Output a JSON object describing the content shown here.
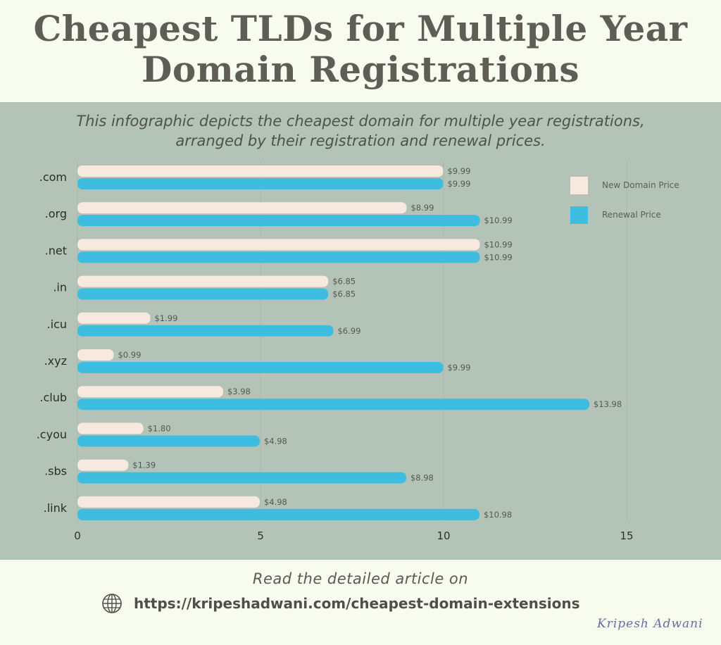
{
  "header": {
    "title_line1": "Cheapest TLDs for Multiple Year",
    "title_line2": "Domain Registrations",
    "subtitle_line1": "This infographic depicts the cheapest domain for multiple year registrations,",
    "subtitle_line2": "arranged by their registration and renewal prices."
  },
  "footer": {
    "read_more": "Read the detailed article on",
    "url": "https://kripeshadwani.com/cheapest-domain-extensions",
    "url_icon": "globe-icon",
    "signature": "Kripesh Adwani"
  },
  "colors": {
    "new_price": "#f7e9df",
    "renewal_price": "#3fbde0",
    "panel_bg": "#b3c3b7",
    "page_bg": "#f8fcef",
    "title_text": "#5f5e56"
  },
  "chart_data": {
    "type": "bar",
    "orientation": "horizontal",
    "title": "Cheapest TLDs for Multiple Year Domain Registrations",
    "subtitle": "This infographic depicts the cheapest domain for multiple year registrations, arranged by their registration and renewal prices.",
    "xlabel": "",
    "ylabel": "",
    "xlim": [
      0,
      17
    ],
    "x_ticks": [
      0,
      5,
      10,
      15
    ],
    "grid": true,
    "legend_position": "top-right",
    "categories": [
      ".com",
      ".org",
      ".net",
      ".in",
      ".icu",
      ".xyz",
      ".club",
      ".cyou",
      ".sbs",
      ".link"
    ],
    "series": [
      {
        "name": "New Domain Price",
        "color": "#f7e9df",
        "values": [
          9.99,
          8.99,
          10.99,
          6.85,
          1.99,
          0.99,
          3.98,
          1.8,
          1.39,
          4.98
        ],
        "labels": [
          "$9.99",
          "$8.99",
          "$10.99",
          "$6.85",
          "$1.99",
          "$0.99",
          "$3.98",
          "$1.80",
          "$1.39",
          "$4.98"
        ]
      },
      {
        "name": "Renewal Price",
        "color": "#3fbde0",
        "values": [
          9.99,
          10.99,
          10.99,
          6.85,
          6.99,
          9.99,
          13.98,
          4.98,
          8.98,
          10.98
        ],
        "labels": [
          "$9.99",
          "$10.99",
          "$10.99",
          "$6.85",
          "$6.99",
          "$9.99",
          "$13.98",
          "$4.98",
          "$8.98",
          "$10.98"
        ]
      }
    ]
  }
}
